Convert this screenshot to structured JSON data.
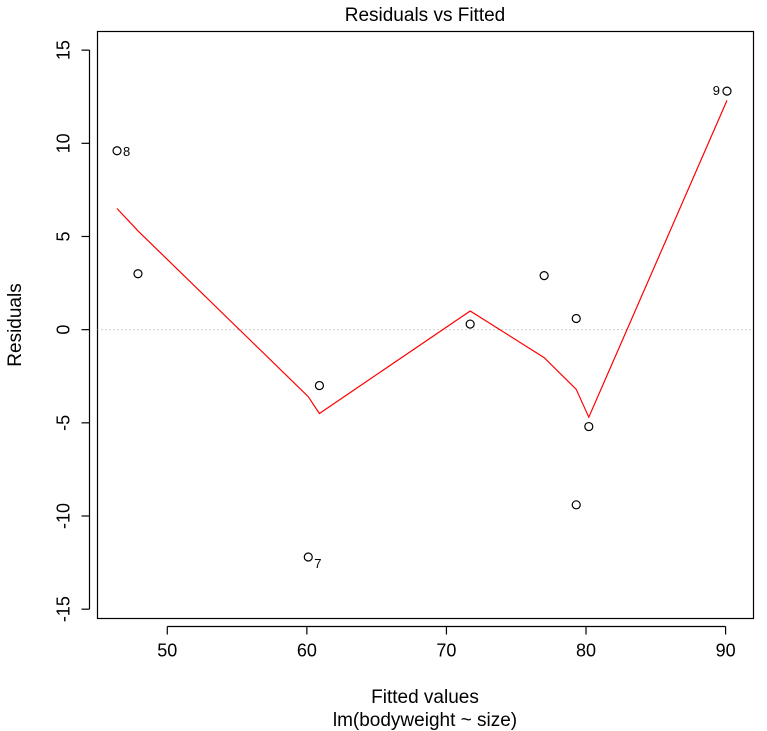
{
  "chart_data": {
    "type": "scatter",
    "title": "Residuals vs Fitted",
    "xlabel": "Fitted values",
    "subtitle": "lm(bodyweight ~ size)",
    "ylabel": "Residuals",
    "xlim": [
      45,
      92
    ],
    "ylim": [
      -15.5,
      16
    ],
    "x_ticks": [
      50,
      60,
      70,
      80,
      90
    ],
    "y_ticks": [
      -15,
      -10,
      -5,
      0,
      5,
      10,
      15
    ],
    "x_tick_labels": [
      "50",
      "60",
      "70",
      "80",
      "90"
    ],
    "y_tick_labels": [
      "-15",
      "-10",
      "-5",
      "0",
      "5",
      "10",
      "15"
    ],
    "reference_line": {
      "y": 0,
      "style": "dotted",
      "color": "#a0a0a0"
    },
    "points": [
      {
        "x": 46.4,
        "y": 9.6,
        "label": "8"
      },
      {
        "x": 47.9,
        "y": 3.0,
        "label": ""
      },
      {
        "x": 60.1,
        "y": -12.2,
        "label": "7"
      },
      {
        "x": 60.9,
        "y": -3.0,
        "label": ""
      },
      {
        "x": 71.7,
        "y": 0.3,
        "label": ""
      },
      {
        "x": 77.0,
        "y": 2.9,
        "label": ""
      },
      {
        "x": 79.3,
        "y": 0.6,
        "label": ""
      },
      {
        "x": 79.3,
        "y": -9.4,
        "label": ""
      },
      {
        "x": 80.2,
        "y": -5.2,
        "label": ""
      },
      {
        "x": 90.1,
        "y": 12.8,
        "label": "9"
      }
    ],
    "smooth_line": {
      "color": "#ff0000",
      "x": [
        46.4,
        47.9,
        60.1,
        60.9,
        71.7,
        77.0,
        79.3,
        80.2,
        90.1
      ],
      "y": [
        6.5,
        5.3,
        -3.6,
        -4.5,
        1.0,
        -1.5,
        -3.2,
        -4.7,
        12.3
      ]
    },
    "grid": false,
    "legend": "none"
  }
}
